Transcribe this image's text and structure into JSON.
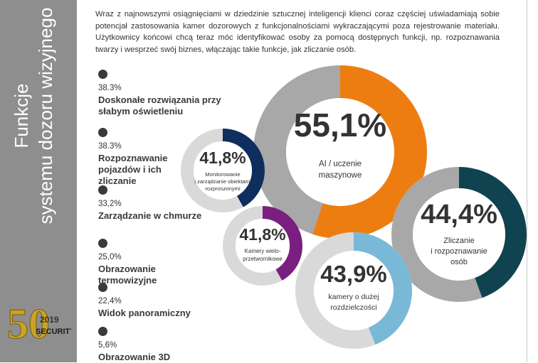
{
  "sidebar": {
    "title_line1": "Funkcje",
    "title_line2": "systemu dozoru wizyjnego",
    "logo_number": "50",
    "logo_year": "2019",
    "logo_brand": "SECURITY"
  },
  "intro": {
    "text": "Wraz z najnowszymi osiągnięciami w dziedzinie sztucznej inteligencji klienci coraz częściej uświadamiają sobie potencjał zastosowania kamer dozorowych z funkcjonalnościami wykraczającymi poza rejestrowanie materiału. Użytkownicy końcowi chcą teraz móc identyfikować osoby za pomocą dostępnych funkcji, np. rozpoznawania twarzy i wesprzeć swój biznes, włączając takie funkcje, jak zliczanie osób."
  },
  "legend": [
    {
      "pct": "38.3%",
      "lines": [
        "Doskonałe rozwiązania przy",
        "słabym oświetleniu"
      ]
    },
    {
      "pct": "38.3%",
      "lines": [
        "Rozpoznawanie",
        "pojazdów i ich",
        "zliczanie"
      ]
    },
    {
      "pct": "33,2%",
      "lines": [
        "Zarządzanie w chmurze"
      ]
    },
    {
      "pct": "25,0%",
      "lines": [
        "Obrazowanie",
        "termowizyjne"
      ]
    },
    {
      "pct": "22,4%",
      "lines": [
        "Widok panoramiczny"
      ]
    },
    {
      "pct": "5,6%",
      "lines": [
        "Obrazowanie 3D"
      ]
    }
  ],
  "chart_data": {
    "type": "pie",
    "title": "Funkcje systemu dozoru wizyjnego",
    "series": [
      {
        "name": "AI / uczenie maszynowe",
        "label": "55,1%",
        "value": 55.1,
        "color": "#ee7d11",
        "lines": [
          "AI / uczenie",
          "maszynowe"
        ]
      },
      {
        "name": "Zliczanie i rozpoznawanie osób",
        "label": "44,4%",
        "value": 44.4,
        "color": "#0f4350",
        "lines": [
          "Zliczanie",
          "i rozpoznawanie",
          "osób"
        ]
      },
      {
        "name": "kamery o dużej rozdzielczości",
        "label": "43,9%",
        "value": 43.9,
        "color": "#7ab8d8",
        "lines": [
          "kamery o dużej",
          "rozdzielczości"
        ]
      },
      {
        "name": "Monitorowanie i zarządzanie obiektami rozproszonymi",
        "label": "41,8%",
        "value": 41.8,
        "color": "#0e2e5e",
        "lines": [
          "Monitorowanie",
          "i zarządzanie obiektami",
          "rozproszonymi"
        ]
      },
      {
        "name": "Kamery wieloprzetwornikowe",
        "label": "41,8%",
        "value": 41.8,
        "color": "#7a1e80",
        "lines": [
          "Kamery wielo-",
          "przetwornikowe"
        ]
      }
    ],
    "track_color": "#a8a8a8",
    "track_color_light": "#d9d9d9"
  }
}
